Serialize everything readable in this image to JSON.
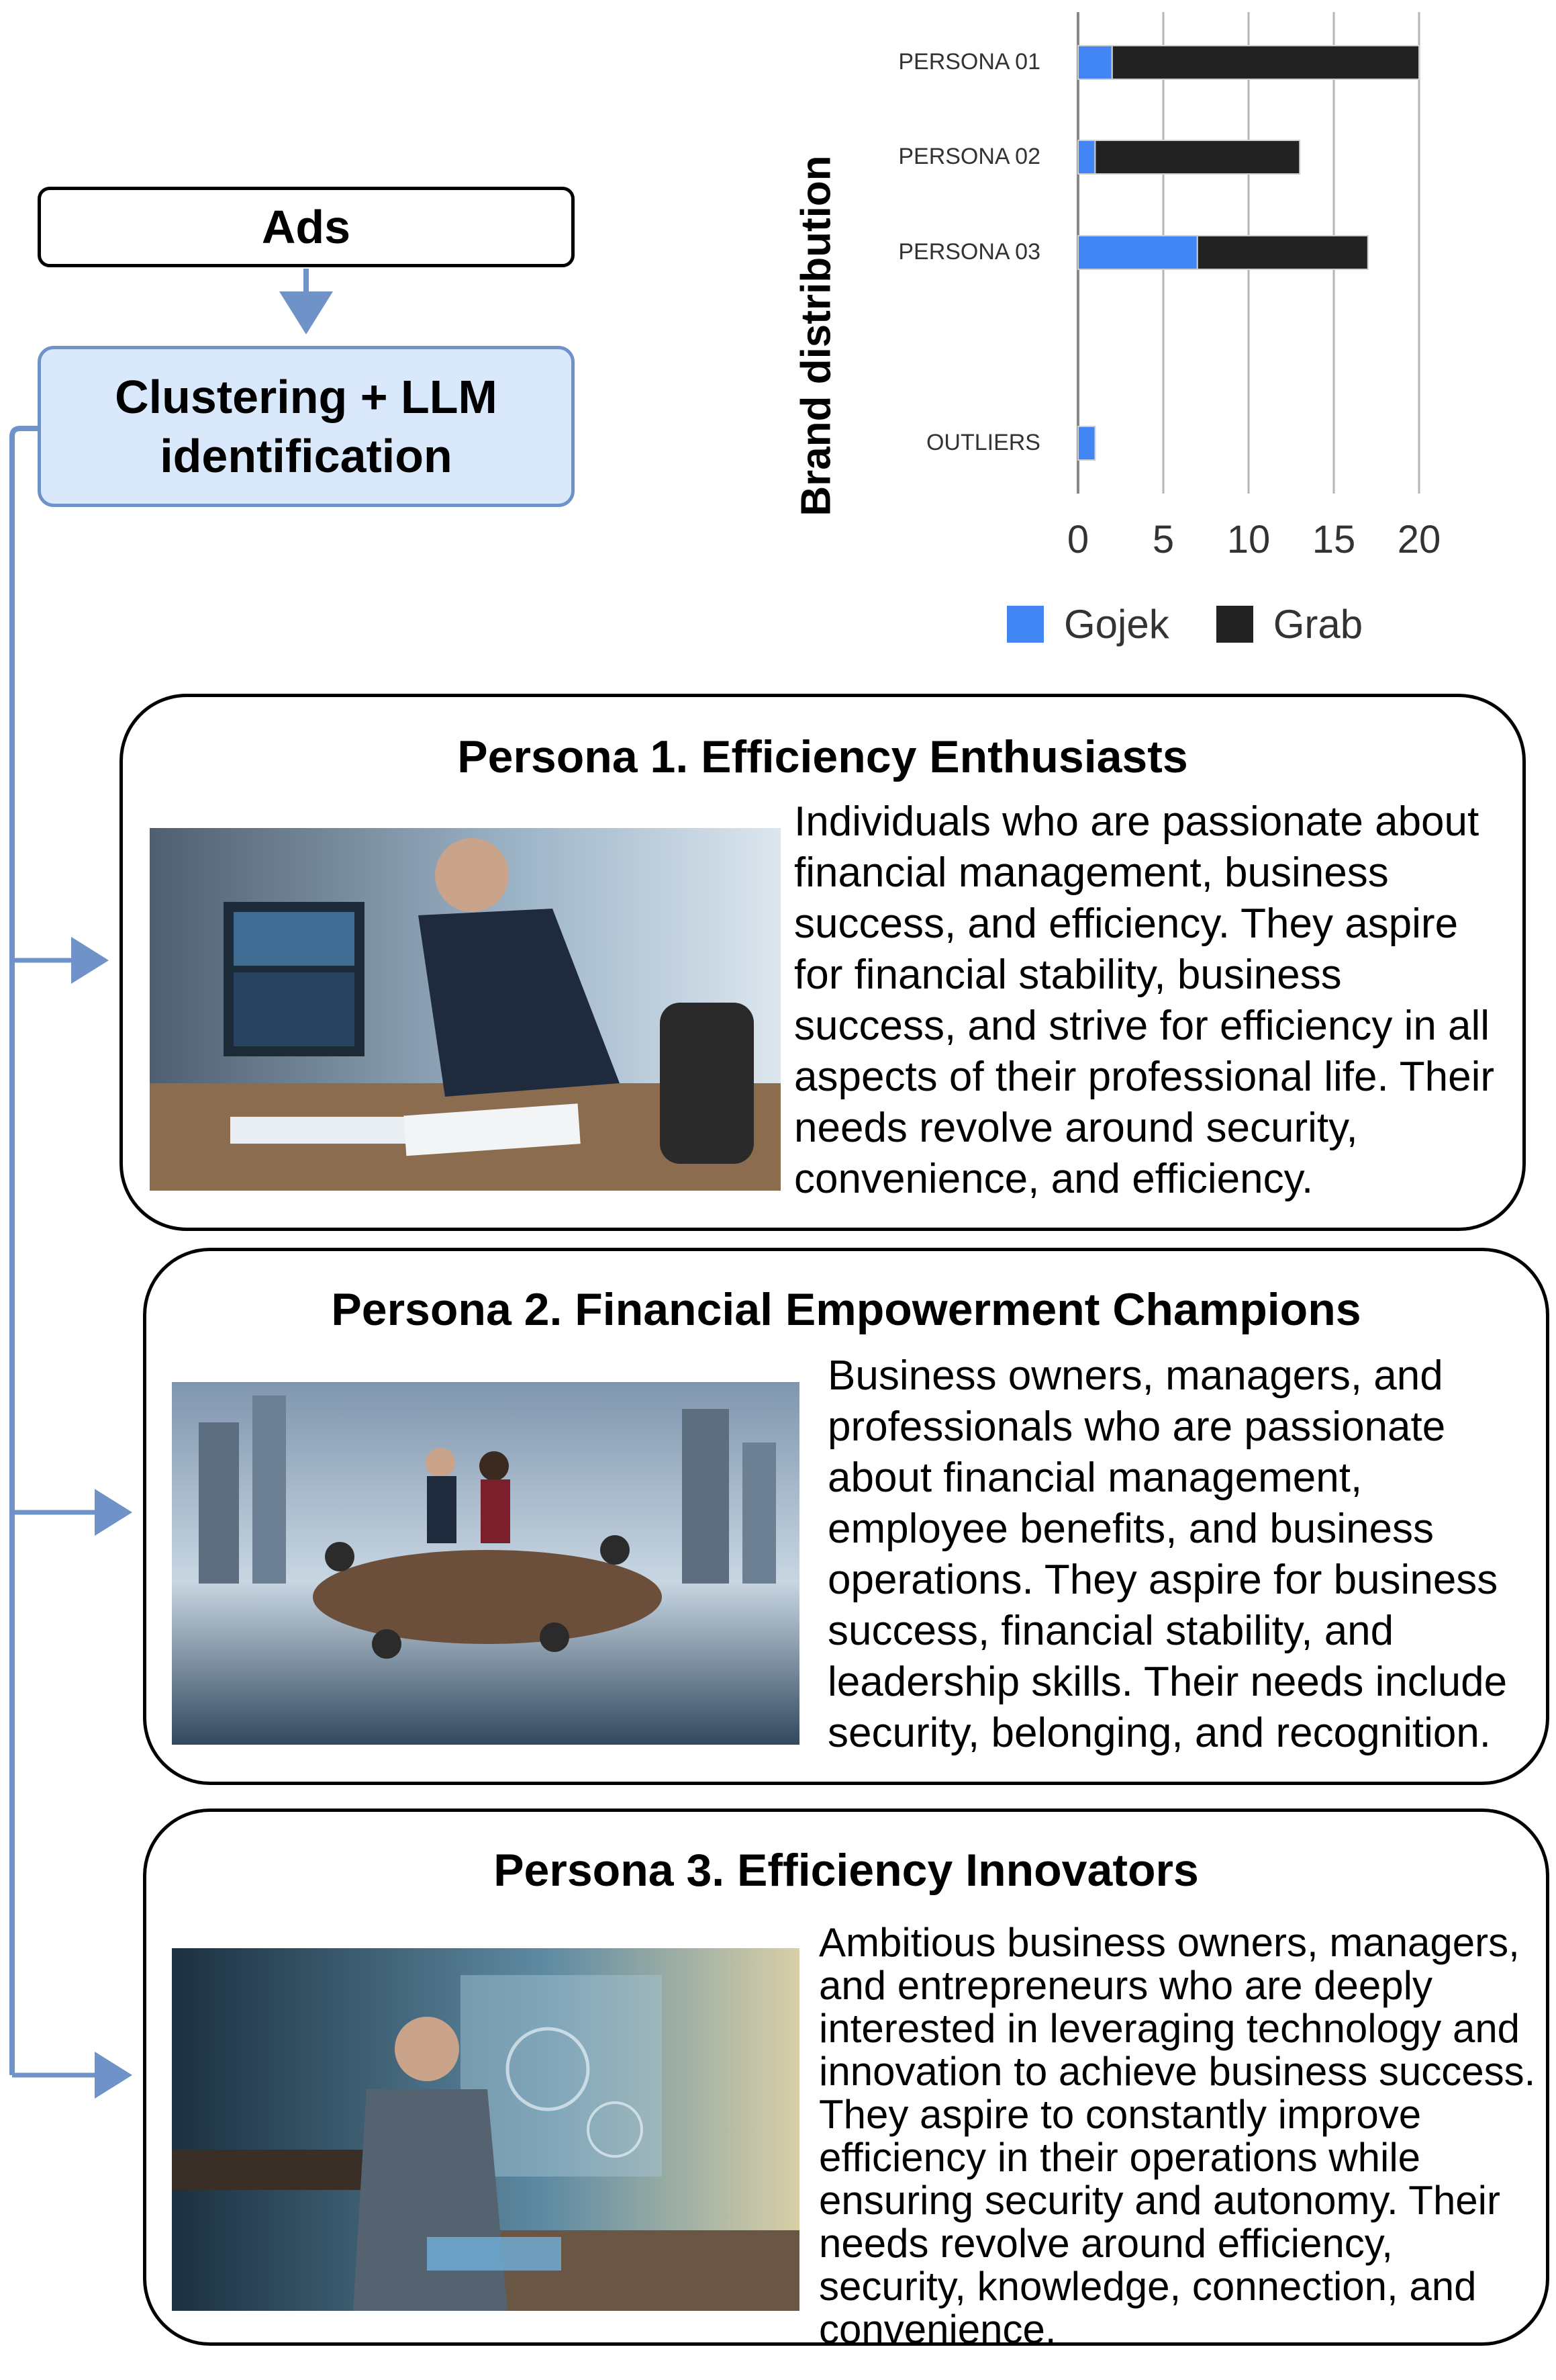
{
  "flow": {
    "ads_label": "Ads",
    "cluster_label": "Clustering + LLM\nidentification"
  },
  "chart_data": {
    "type": "bar",
    "orientation": "horizontal",
    "stacked": true,
    "ylabel": "Brand distribution",
    "categories": [
      "PERSONA 01",
      "PERSONA 02",
      "PERSONA 03",
      "OUTLIERS"
    ],
    "series": [
      {
        "name": "Gojek",
        "color": "#4285f4",
        "values": [
          2,
          1,
          7,
          1
        ]
      },
      {
        "name": "Grab",
        "color": "#222222",
        "values": [
          18,
          12,
          10,
          0
        ]
      }
    ],
    "xlim": [
      0,
      20
    ],
    "xticks": [
      "0",
      "5",
      "10",
      "15",
      "20"
    ],
    "grid": true,
    "legend_position": "bottom"
  },
  "personas": [
    {
      "title": "Persona 1. Efficiency Enthusiasts",
      "description": "Individuals who are passionate about financial management, business success, and efficiency. They aspire for financial stability, business success, and strive for efficiency in all aspects of their professional life. Their needs revolve around security, convenience, and efficiency."
    },
    {
      "title": "Persona 2. Financial Empowerment Champions",
      "description": "Business owners, managers, and professionals who are passionate about financial management, employee benefits, and business operations. They aspire for business success, financial stability, and leadership skills. Their needs include security, belonging, and recognition."
    },
    {
      "title": "Persona 3. Efficiency Innovators",
      "description": "Ambitious business owners, managers, and entrepreneurs who are deeply interested in leveraging technology and innovation to achieve business success. They aspire to constantly improve efficiency in their operations while ensuring security and autonomy. Their needs revolve around efficiency, security, knowledge, connection, and convenience."
    }
  ]
}
